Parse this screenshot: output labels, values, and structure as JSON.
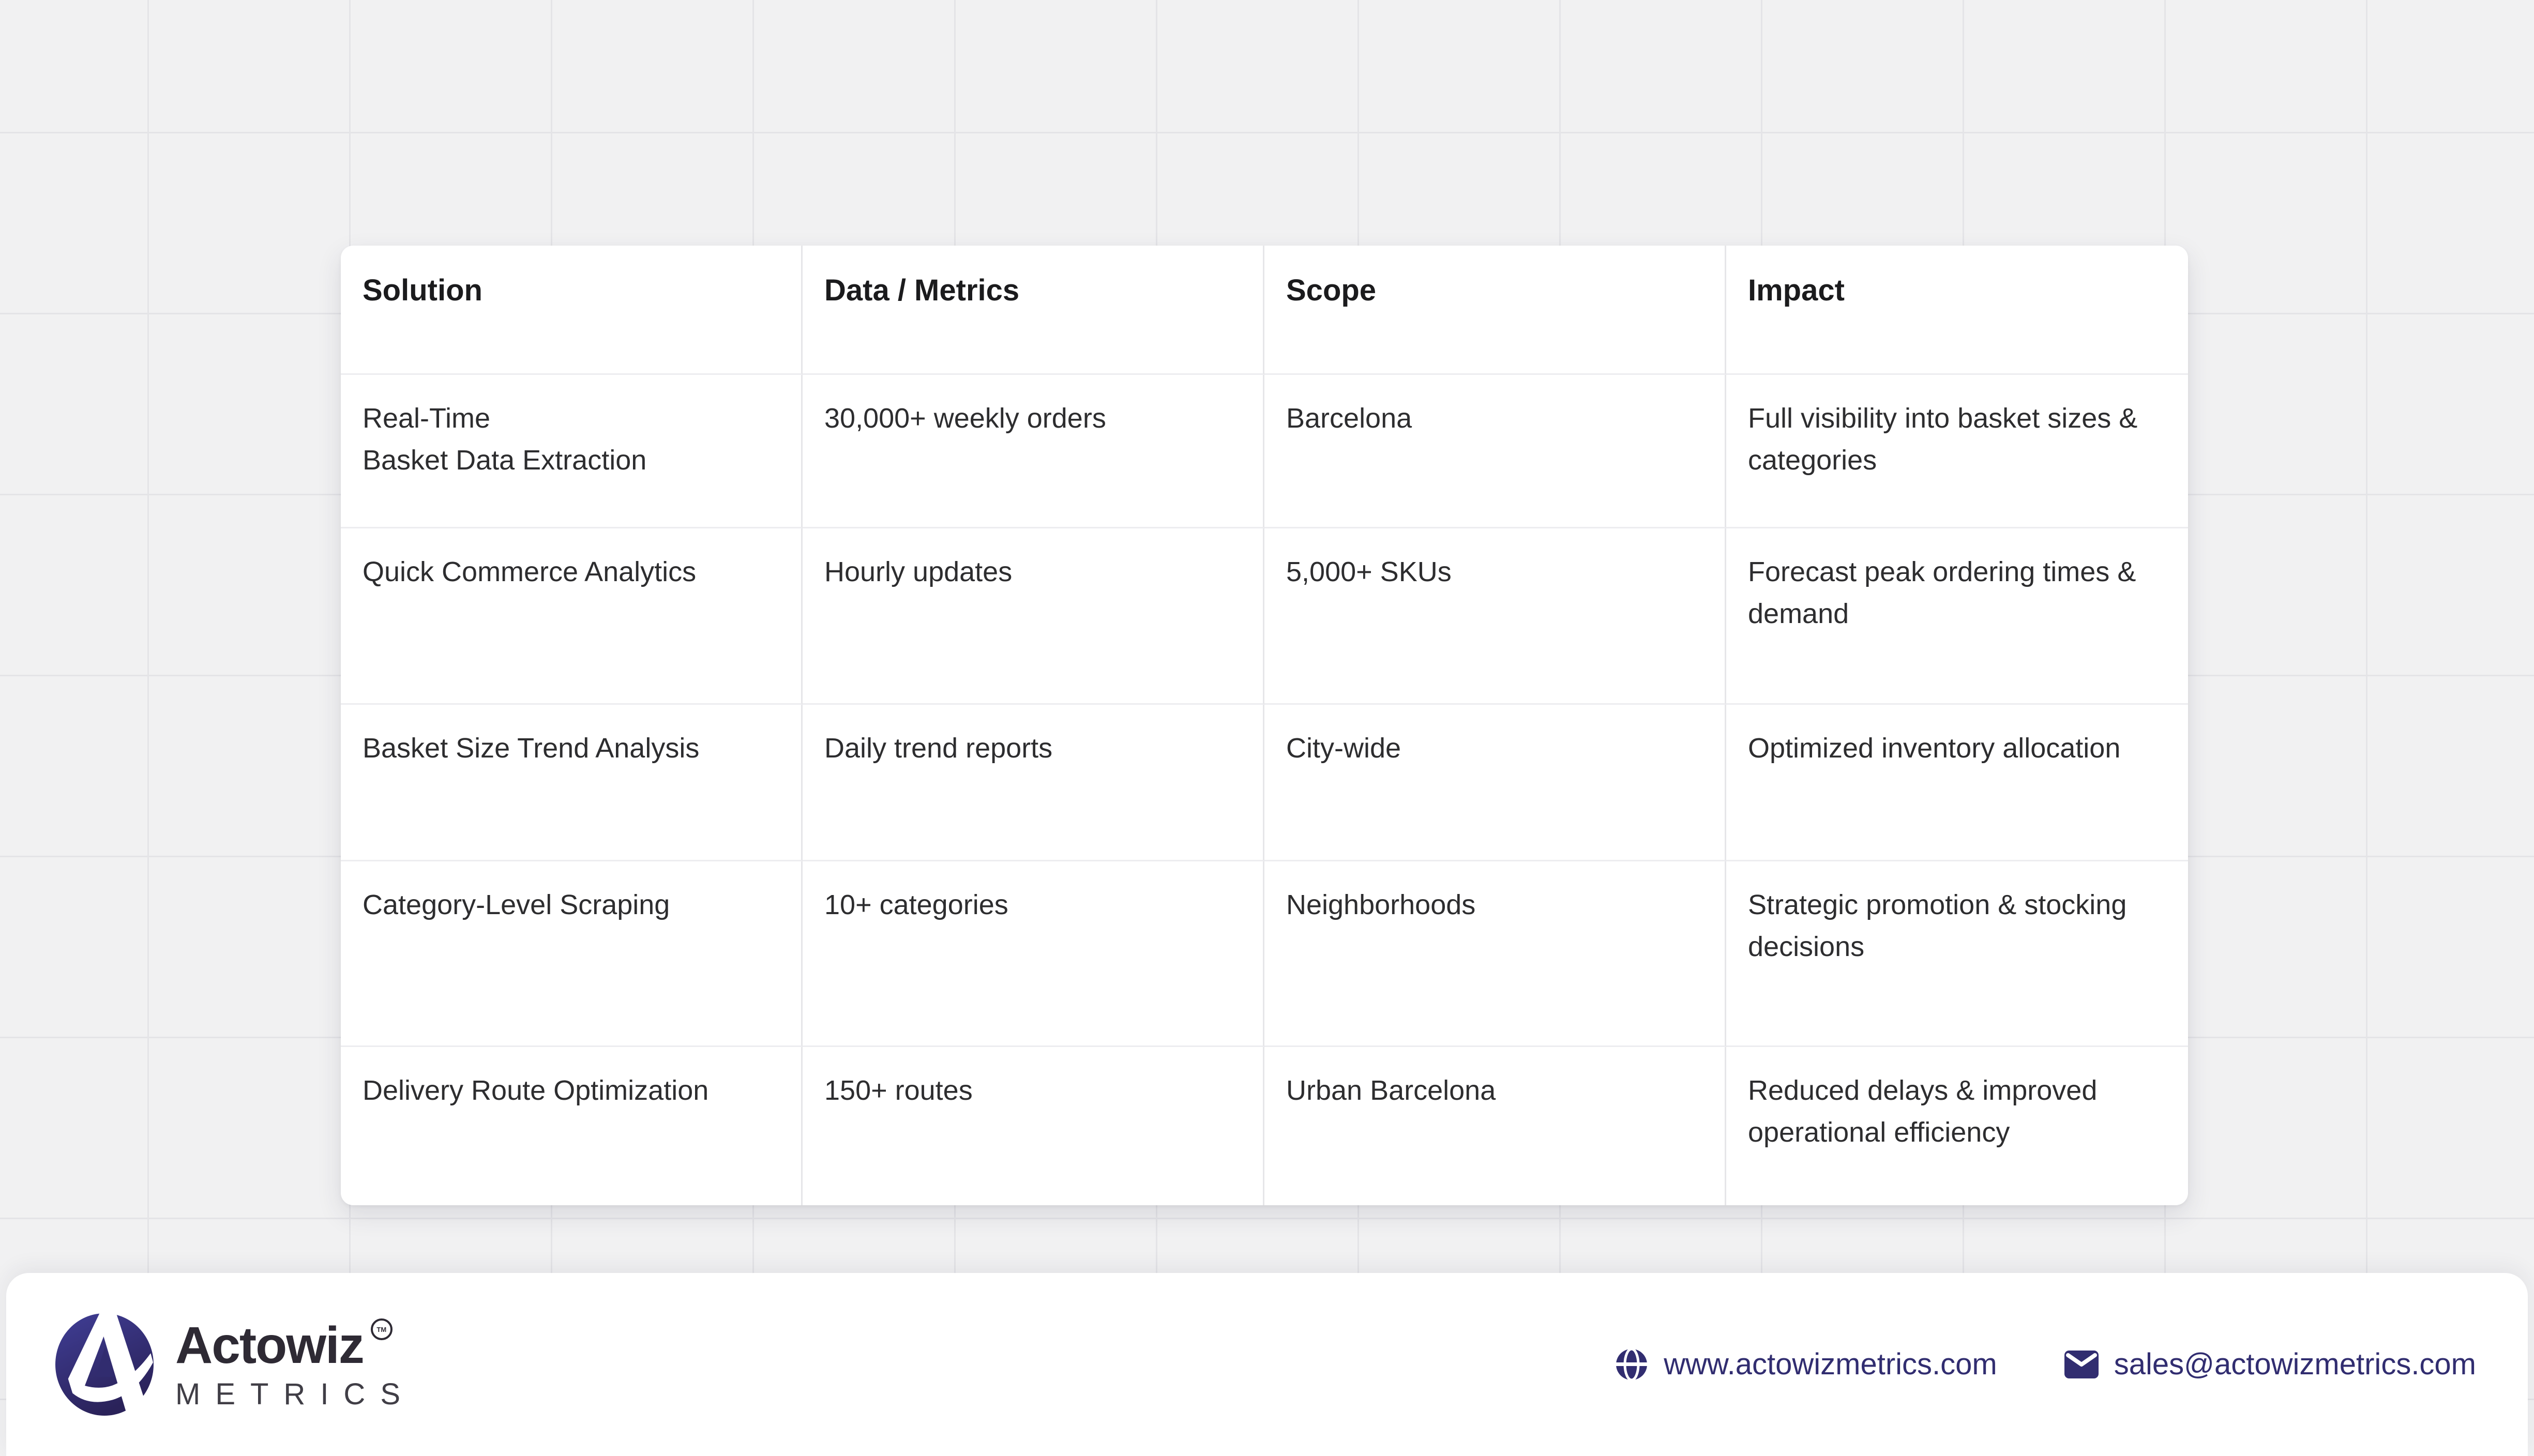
{
  "colors": {
    "accent_indigo": "#312d70",
    "logo_gradient_top": "#403e96",
    "logo_gradient_bottom": "#2a2259",
    "canvas_background": "#f1f1f2",
    "grid_line": "#e4e4e7"
  },
  "table": {
    "columns": [
      "Solution",
      "Data / Metrics",
      "Scope",
      "Impact"
    ],
    "rows": [
      {
        "solution": "Real-Time\nBasket Data Extraction",
        "data_metrics": "30,000+ weekly orders",
        "scope": "Barcelona",
        "impact": "Full visibility into basket sizes & categories"
      },
      {
        "solution": "Quick Commerce Analytics",
        "data_metrics": "Hourly updates",
        "scope": "5,000+ SKUs",
        "impact": "Forecast peak ordering times & demand"
      },
      {
        "solution": "Basket Size Trend Analysis",
        "data_metrics": "Daily trend reports",
        "scope": "City-wide",
        "impact": "Optimized inventory allocation"
      },
      {
        "solution": "Category-Level Scraping",
        "data_metrics": "10+ categories",
        "scope": "Neighborhoods",
        "impact": "Strategic promotion & stocking decisions"
      },
      {
        "solution": "Delivery Route Optimization",
        "data_metrics": "150+ routes",
        "scope": "Urban Barcelona",
        "impact": "Reduced delays & improved operational efficiency"
      }
    ]
  },
  "footer": {
    "brand_name": "Actowiz",
    "brand_trademark": "TM",
    "brand_subtitle": "METRICS",
    "website_label": "www.actowizmetrics.com",
    "email_label": "sales@actowizmetrics.com",
    "website_icon": "globe-icon",
    "email_icon": "mail-icon",
    "logo_icon": "actowiz-a-logo-mark"
  }
}
